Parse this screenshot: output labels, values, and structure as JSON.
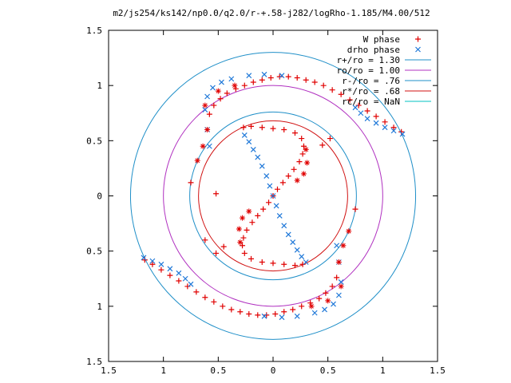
{
  "chart_data": {
    "type": "scatter",
    "title": "m2/js254/ks142/np0.0/q2.0/r-+.58-j282/logRho-1.185/M4.00/512",
    "xlabel": "",
    "ylabel": "",
    "xlim": [
      -1.5,
      1.5
    ],
    "ylim": [
      -1.5,
      1.5
    ],
    "x_ticks": [
      -1.5,
      -1,
      -0.5,
      0,
      0.5,
      1,
      1.5
    ],
    "y_ticks": [
      -1.5,
      -1,
      -0.5,
      0,
      0.5,
      1,
      1.5
    ],
    "x_tick_labels": [
      "1.5",
      "1",
      "0.5",
      "0",
      "0.5",
      "1",
      "1.5"
    ],
    "y_tick_labels": [
      "1.5",
      "1",
      "0.5",
      "0",
      "0.5",
      "1",
      "1.5"
    ],
    "grid": false,
    "legend_position": "top-right",
    "circles": [
      {
        "name": "r+/ro = 1.30",
        "r": 1.3,
        "color": "#1f8fc8"
      },
      {
        "name": "ro/ro = 1.00",
        "r": 1.0,
        "color": "#b030c0"
      },
      {
        "name": "r-/ro = .76",
        "r": 0.76,
        "color": "#1f8fc8"
      },
      {
        "name": "r*/ro = .68",
        "r": 0.68,
        "color": "#d01010"
      },
      {
        "name": "rc/ro = NaN",
        "r": null,
        "color": "#00c0c0"
      }
    ],
    "series": [
      {
        "name": "W phase",
        "marker": "plus",
        "color": "#e00000",
        "points": [
          [
            -1.17,
            -0.58
          ],
          [
            -1.1,
            -0.62
          ],
          [
            -1.02,
            -0.67
          ],
          [
            -0.94,
            -0.72
          ],
          [
            -0.86,
            -0.77
          ],
          [
            -0.78,
            -0.82
          ],
          [
            -0.7,
            -0.87
          ],
          [
            -0.62,
            -0.92
          ],
          [
            -0.54,
            -0.96
          ],
          [
            -0.46,
            -1.0
          ],
          [
            -0.38,
            -1.03
          ],
          [
            -0.3,
            -1.05
          ],
          [
            -0.22,
            -1.07
          ],
          [
            -0.14,
            -1.08
          ],
          [
            -0.06,
            -1.08
          ],
          [
            0.02,
            -1.07
          ],
          [
            0.1,
            -1.05
          ],
          [
            0.18,
            -1.03
          ],
          [
            0.26,
            -1.0
          ],
          [
            0.34,
            -0.97
          ],
          [
            0.42,
            -0.93
          ],
          [
            0.48,
            -0.88
          ],
          [
            0.54,
            -0.82
          ],
          [
            0.58,
            -0.74
          ],
          [
            1.17,
            0.58
          ],
          [
            1.1,
            0.62
          ],
          [
            1.02,
            0.67
          ],
          [
            0.94,
            0.72
          ],
          [
            0.86,
            0.77
          ],
          [
            0.78,
            0.82
          ],
          [
            0.7,
            0.87
          ],
          [
            0.62,
            0.92
          ],
          [
            0.54,
            0.96
          ],
          [
            0.46,
            1.0
          ],
          [
            0.38,
            1.03
          ],
          [
            0.3,
            1.05
          ],
          [
            0.22,
            1.07
          ],
          [
            0.14,
            1.08
          ],
          [
            0.06,
            1.08
          ],
          [
            -0.02,
            1.07
          ],
          [
            -0.1,
            1.05
          ],
          [
            -0.18,
            1.03
          ],
          [
            -0.26,
            1.0
          ],
          [
            -0.34,
            0.97
          ],
          [
            -0.42,
            0.93
          ],
          [
            -0.48,
            0.88
          ],
          [
            -0.54,
            0.82
          ],
          [
            -0.58,
            0.74
          ],
          [
            0.0,
            0.0
          ],
          [
            -0.04,
            -0.06
          ],
          [
            -0.09,
            -0.12
          ],
          [
            -0.14,
            -0.18
          ],
          [
            -0.19,
            -0.24
          ],
          [
            -0.24,
            -0.31
          ],
          [
            -0.27,
            -0.38
          ],
          [
            -0.28,
            -0.45
          ],
          [
            -0.26,
            -0.52
          ],
          [
            -0.2,
            -0.57
          ],
          [
            -0.1,
            -0.6
          ],
          [
            0.0,
            -0.61
          ],
          [
            0.1,
            -0.62
          ],
          [
            0.2,
            -0.63
          ],
          [
            0.27,
            -0.62
          ],
          [
            0.04,
            0.06
          ],
          [
            0.09,
            0.12
          ],
          [
            0.14,
            0.18
          ],
          [
            0.19,
            0.24
          ],
          [
            0.24,
            0.31
          ],
          [
            0.27,
            0.38
          ],
          [
            0.28,
            0.45
          ],
          [
            0.26,
            0.52
          ],
          [
            0.2,
            0.57
          ],
          [
            0.1,
            0.6
          ],
          [
            0.0,
            0.61
          ],
          [
            -0.1,
            0.62
          ],
          [
            -0.2,
            0.63
          ],
          [
            -0.27,
            0.62
          ],
          [
            0.52,
            0.52
          ],
          [
            0.45,
            0.46
          ],
          [
            0.75,
            -0.12
          ],
          [
            -0.75,
            0.12
          ],
          [
            -0.52,
            -0.52
          ],
          [
            -0.45,
            -0.46
          ],
          [
            -0.62,
            -0.4
          ],
          [
            -0.52,
            0.02
          ]
        ]
      },
      {
        "name": "drho phase",
        "marker": "cross",
        "color": "#1f78d8",
        "points": [
          [
            -1.18,
            -0.56
          ],
          [
            -1.1,
            -0.59
          ],
          [
            -1.02,
            -0.62
          ],
          [
            -0.94,
            -0.66
          ],
          [
            -0.86,
            -0.7
          ],
          [
            -0.8,
            -0.75
          ],
          [
            -0.75,
            -0.8
          ],
          [
            1.18,
            0.56
          ],
          [
            1.1,
            0.59
          ],
          [
            1.02,
            0.62
          ],
          [
            0.94,
            0.66
          ],
          [
            0.86,
            0.7
          ],
          [
            0.8,
            0.75
          ],
          [
            0.75,
            0.8
          ],
          [
            -0.26,
            0.55
          ],
          [
            -0.22,
            0.49
          ],
          [
            -0.18,
            0.42
          ],
          [
            -0.14,
            0.35
          ],
          [
            -0.1,
            0.27
          ],
          [
            -0.06,
            0.18
          ],
          [
            -0.03,
            0.09
          ],
          [
            0.0,
            0.0
          ],
          [
            0.03,
            -0.09
          ],
          [
            0.06,
            -0.18
          ],
          [
            0.1,
            -0.27
          ],
          [
            0.14,
            -0.35
          ],
          [
            0.18,
            -0.42
          ],
          [
            0.22,
            -0.49
          ],
          [
            0.26,
            -0.55
          ],
          [
            0.3,
            -0.6
          ],
          [
            0.58,
            -0.45
          ],
          [
            0.6,
            -0.6
          ],
          [
            0.62,
            -0.78
          ],
          [
            0.6,
            -0.9
          ],
          [
            0.55,
            -0.98
          ],
          [
            0.47,
            -1.03
          ],
          [
            0.38,
            -1.06
          ],
          [
            0.22,
            -1.09
          ],
          [
            0.08,
            -1.1
          ],
          [
            -0.08,
            -1.09
          ],
          [
            -0.58,
            0.45
          ],
          [
            -0.6,
            0.6
          ],
          [
            -0.62,
            0.78
          ],
          [
            -0.6,
            0.9
          ],
          [
            -0.55,
            0.98
          ],
          [
            -0.47,
            1.03
          ],
          [
            -0.38,
            1.06
          ],
          [
            -0.22,
            1.09
          ],
          [
            -0.08,
            1.1
          ],
          [
            0.08,
            1.09
          ]
        ]
      }
    ],
    "star_points": {
      "color": "#e00000",
      "points": [
        [
          -0.69,
          0.32
        ],
        [
          -0.64,
          0.45
        ],
        [
          -0.6,
          0.6
        ],
        [
          -0.62,
          0.82
        ],
        [
          -0.5,
          0.95
        ],
        [
          -0.35,
          1.0
        ],
        [
          0.69,
          -0.32
        ],
        [
          0.64,
          -0.45
        ],
        [
          0.6,
          -0.6
        ],
        [
          0.62,
          -0.82
        ],
        [
          0.5,
          -0.95
        ],
        [
          0.35,
          -1.0
        ],
        [
          0.3,
          0.42
        ],
        [
          0.31,
          0.3
        ],
        [
          0.28,
          0.2
        ],
        [
          0.22,
          0.14
        ],
        [
          -0.3,
          -0.42
        ],
        [
          -0.31,
          -0.3
        ],
        [
          -0.28,
          -0.2
        ],
        [
          -0.22,
          -0.14
        ]
      ]
    }
  }
}
